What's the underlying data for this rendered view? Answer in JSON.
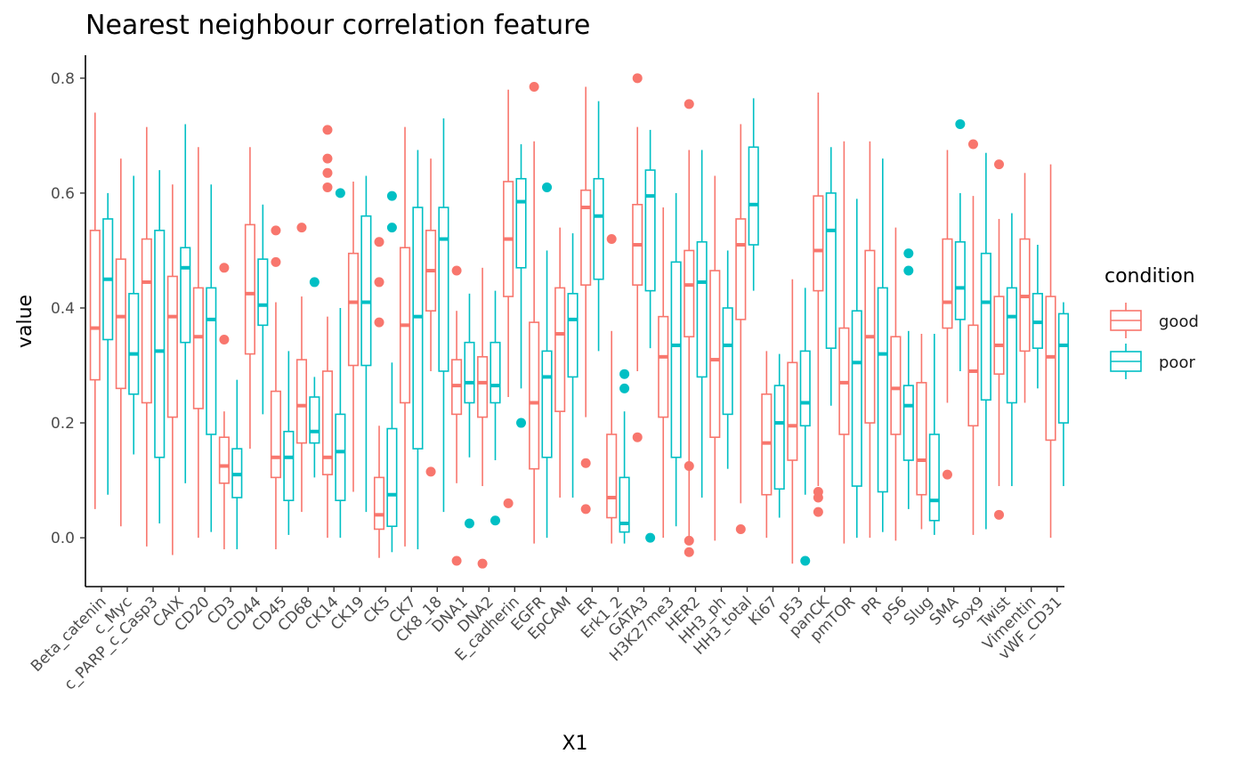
{
  "chart_data": {
    "type": "boxplot",
    "title": "Nearest neighbour correlation feature",
    "xlabel": "X1",
    "ylabel": "value",
    "ylim": [
      -0.085,
      0.84
    ],
    "yticks": [
      0.0,
      0.2,
      0.4,
      0.6,
      0.8
    ],
    "ytick_labels": [
      "0.0",
      "0.2",
      "0.4",
      "0.6",
      "0.8"
    ],
    "grid": false,
    "legend": {
      "title": "condition",
      "position": "right"
    },
    "categories": [
      "Beta_catenin",
      "c_Myc",
      "c_PARP_c_Casp3",
      "CAIX",
      "CD20",
      "CD3",
      "CD44",
      "CD45",
      "CD68",
      "CK14",
      "CK19",
      "CK5",
      "CK7",
      "CK8_18",
      "DNA1",
      "DNA2",
      "E_cadherin",
      "EGFR",
      "EpCAM",
      "ER",
      "Erk1_2",
      "GATA3",
      "H3K27me3",
      "HER2",
      "HH3_ph",
      "HH3_total",
      "Ki67",
      "p53",
      "panCK",
      "pmTOR",
      "PR",
      "pS6",
      "Slug",
      "SMA",
      "Sox9",
      "Twist",
      "Vimentin",
      "vWF_CD31"
    ],
    "series": [
      {
        "name": "good",
        "color": "#F8766D",
        "boxes": [
          {
            "whisker_low": 0.05,
            "q1": 0.275,
            "median": 0.365,
            "q3": 0.535,
            "whisker_high": 0.74,
            "outliers": []
          },
          {
            "whisker_low": 0.02,
            "q1": 0.26,
            "median": 0.385,
            "q3": 0.485,
            "whisker_high": 0.66,
            "outliers": []
          },
          {
            "whisker_low": -0.015,
            "q1": 0.235,
            "median": 0.445,
            "q3": 0.52,
            "whisker_high": 0.715,
            "outliers": []
          },
          {
            "whisker_low": -0.03,
            "q1": 0.21,
            "median": 0.385,
            "q3": 0.455,
            "whisker_high": 0.615,
            "outliers": []
          },
          {
            "whisker_low": 0.0,
            "q1": 0.225,
            "median": 0.35,
            "q3": 0.435,
            "whisker_high": 0.68,
            "outliers": []
          },
          {
            "whisker_low": -0.02,
            "q1": 0.095,
            "median": 0.125,
            "q3": 0.175,
            "whisker_high": 0.22,
            "outliers": [
              0.47,
              0.345
            ]
          },
          {
            "whisker_low": 0.155,
            "q1": 0.32,
            "median": 0.425,
            "q3": 0.545,
            "whisker_high": 0.68,
            "outliers": []
          },
          {
            "whisker_low": -0.02,
            "q1": 0.105,
            "median": 0.14,
            "q3": 0.255,
            "whisker_high": 0.41,
            "outliers": [
              0.535,
              0.48
            ]
          },
          {
            "whisker_low": 0.045,
            "q1": 0.165,
            "median": 0.23,
            "q3": 0.31,
            "whisker_high": 0.42,
            "outliers": [
              0.54
            ]
          },
          {
            "whisker_low": 0.0,
            "q1": 0.11,
            "median": 0.14,
            "q3": 0.29,
            "whisker_high": 0.385,
            "outliers": [
              0.71,
              0.66,
              0.635,
              0.61
            ]
          },
          {
            "whisker_low": 0.08,
            "q1": 0.3,
            "median": 0.41,
            "q3": 0.495,
            "whisker_high": 0.62,
            "outliers": []
          },
          {
            "whisker_low": -0.035,
            "q1": 0.015,
            "median": 0.04,
            "q3": 0.105,
            "whisker_high": 0.195,
            "outliers": [
              0.515,
              0.445,
              0.375
            ]
          },
          {
            "whisker_low": -0.015,
            "q1": 0.235,
            "median": 0.37,
            "q3": 0.505,
            "whisker_high": 0.715,
            "outliers": []
          },
          {
            "whisker_low": 0.29,
            "q1": 0.395,
            "median": 0.465,
            "q3": 0.535,
            "whisker_high": 0.66,
            "outliers": [
              0.115
            ]
          },
          {
            "whisker_low": 0.095,
            "q1": 0.215,
            "median": 0.265,
            "q3": 0.31,
            "whisker_high": 0.395,
            "outliers": [
              0.465,
              -0.04
            ]
          },
          {
            "whisker_low": 0.09,
            "q1": 0.21,
            "median": 0.27,
            "q3": 0.315,
            "whisker_high": 0.47,
            "outliers": [
              -0.045
            ]
          },
          {
            "whisker_low": 0.245,
            "q1": 0.42,
            "median": 0.52,
            "q3": 0.62,
            "whisker_high": 0.78,
            "outliers": [
              0.06
            ]
          },
          {
            "whisker_low": -0.01,
            "q1": 0.12,
            "median": 0.235,
            "q3": 0.375,
            "whisker_high": 0.69,
            "outliers": [
              0.785
            ]
          },
          {
            "whisker_low": 0.07,
            "q1": 0.22,
            "median": 0.355,
            "q3": 0.435,
            "whisker_high": 0.54,
            "outliers": []
          },
          {
            "whisker_low": 0.21,
            "q1": 0.44,
            "median": 0.575,
            "q3": 0.605,
            "whisker_high": 0.785,
            "outliers": [
              0.13,
              0.05
            ]
          },
          {
            "whisker_low": -0.01,
            "q1": 0.035,
            "median": 0.07,
            "q3": 0.18,
            "whisker_high": 0.36,
            "outliers": [
              0.52
            ]
          },
          {
            "whisker_low": 0.29,
            "q1": 0.44,
            "median": 0.51,
            "q3": 0.58,
            "whisker_high": 0.715,
            "outliers": [
              0.8,
              0.175
            ]
          },
          {
            "whisker_low": 0.0,
            "q1": 0.21,
            "median": 0.315,
            "q3": 0.385,
            "whisker_high": 0.575,
            "outliers": []
          },
          {
            "whisker_low": 0.0,
            "q1": 0.35,
            "median": 0.44,
            "q3": 0.5,
            "whisker_high": 0.675,
            "outliers": [
              0.755,
              0.125,
              -0.005,
              -0.025
            ]
          },
          {
            "whisker_low": -0.005,
            "q1": 0.175,
            "median": 0.31,
            "q3": 0.465,
            "whisker_high": 0.63,
            "outliers": []
          },
          {
            "whisker_low": 0.06,
            "q1": 0.38,
            "median": 0.51,
            "q3": 0.555,
            "whisker_high": 0.72,
            "outliers": [
              0.015
            ]
          },
          {
            "whisker_low": 0.0,
            "q1": 0.075,
            "median": 0.165,
            "q3": 0.25,
            "whisker_high": 0.325,
            "outliers": []
          },
          {
            "whisker_low": -0.045,
            "q1": 0.135,
            "median": 0.195,
            "q3": 0.305,
            "whisker_high": 0.45,
            "outliers": []
          },
          {
            "whisker_low": 0.09,
            "q1": 0.43,
            "median": 0.5,
            "q3": 0.595,
            "whisker_high": 0.775,
            "outliers": [
              0.08,
              0.07,
              0.045
            ]
          },
          {
            "whisker_low": -0.01,
            "q1": 0.18,
            "median": 0.27,
            "q3": 0.365,
            "whisker_high": 0.69,
            "outliers": []
          },
          {
            "whisker_low": 0.0,
            "q1": 0.2,
            "median": 0.35,
            "q3": 0.5,
            "whisker_high": 0.69,
            "outliers": []
          },
          {
            "whisker_low": -0.005,
            "q1": 0.18,
            "median": 0.26,
            "q3": 0.35,
            "whisker_high": 0.54,
            "outliers": []
          },
          {
            "whisker_low": 0.015,
            "q1": 0.075,
            "median": 0.135,
            "q3": 0.27,
            "whisker_high": 0.355,
            "outliers": []
          },
          {
            "whisker_low": 0.235,
            "q1": 0.365,
            "median": 0.41,
            "q3": 0.52,
            "whisker_high": 0.675,
            "outliers": [
              0.11
            ]
          },
          {
            "whisker_low": 0.005,
            "q1": 0.195,
            "median": 0.29,
            "q3": 0.37,
            "whisker_high": 0.595,
            "outliers": [
              0.685
            ]
          },
          {
            "whisker_low": 0.09,
            "q1": 0.285,
            "median": 0.335,
            "q3": 0.42,
            "whisker_high": 0.555,
            "outliers": [
              0.65,
              0.04
            ]
          },
          {
            "whisker_low": 0.235,
            "q1": 0.325,
            "median": 0.42,
            "q3": 0.52,
            "whisker_high": 0.635,
            "outliers": []
          },
          {
            "whisker_low": 0.0,
            "q1": 0.17,
            "median": 0.315,
            "q3": 0.42,
            "whisker_high": 0.65,
            "outliers": []
          }
        ]
      },
      {
        "name": "poor",
        "color": "#00BFC4",
        "boxes": [
          {
            "whisker_low": 0.075,
            "q1": 0.345,
            "median": 0.45,
            "q3": 0.555,
            "whisker_high": 0.6,
            "outliers": []
          },
          {
            "whisker_low": 0.145,
            "q1": 0.25,
            "median": 0.32,
            "q3": 0.425,
            "whisker_high": 0.63,
            "outliers": []
          },
          {
            "whisker_low": 0.025,
            "q1": 0.14,
            "median": 0.325,
            "q3": 0.535,
            "whisker_high": 0.64,
            "outliers": []
          },
          {
            "whisker_low": 0.095,
            "q1": 0.34,
            "median": 0.47,
            "q3": 0.505,
            "whisker_high": 0.72,
            "outliers": []
          },
          {
            "whisker_low": 0.01,
            "q1": 0.18,
            "median": 0.38,
            "q3": 0.435,
            "whisker_high": 0.615,
            "outliers": []
          },
          {
            "whisker_low": -0.02,
            "q1": 0.07,
            "median": 0.11,
            "q3": 0.155,
            "whisker_high": 0.275,
            "outliers": []
          },
          {
            "whisker_low": 0.215,
            "q1": 0.37,
            "median": 0.405,
            "q3": 0.485,
            "whisker_high": 0.58,
            "outliers": []
          },
          {
            "whisker_low": 0.005,
            "q1": 0.065,
            "median": 0.14,
            "q3": 0.185,
            "whisker_high": 0.325,
            "outliers": []
          },
          {
            "whisker_low": 0.105,
            "q1": 0.165,
            "median": 0.185,
            "q3": 0.245,
            "whisker_high": 0.28,
            "outliers": [
              0.445
            ]
          },
          {
            "whisker_low": 0.0,
            "q1": 0.065,
            "median": 0.15,
            "q3": 0.215,
            "whisker_high": 0.4,
            "outliers": [
              0.6
            ]
          },
          {
            "whisker_low": 0.045,
            "q1": 0.3,
            "median": 0.41,
            "q3": 0.56,
            "whisker_high": 0.63,
            "outliers": []
          },
          {
            "whisker_low": -0.025,
            "q1": 0.02,
            "median": 0.075,
            "q3": 0.19,
            "whisker_high": 0.305,
            "outliers": [
              0.595,
              0.54
            ]
          },
          {
            "whisker_low": -0.02,
            "q1": 0.155,
            "median": 0.385,
            "q3": 0.575,
            "whisker_high": 0.675,
            "outliers": []
          },
          {
            "whisker_low": 0.045,
            "q1": 0.29,
            "median": 0.52,
            "q3": 0.575,
            "whisker_high": 0.73,
            "outliers": []
          },
          {
            "whisker_low": 0.14,
            "q1": 0.235,
            "median": 0.27,
            "q3": 0.34,
            "whisker_high": 0.425,
            "outliers": [
              0.025
            ]
          },
          {
            "whisker_low": 0.135,
            "q1": 0.235,
            "median": 0.265,
            "q3": 0.34,
            "whisker_high": 0.43,
            "outliers": [
              0.03
            ]
          },
          {
            "whisker_low": 0.26,
            "q1": 0.47,
            "median": 0.585,
            "q3": 0.625,
            "whisker_high": 0.685,
            "outliers": [
              0.2
            ]
          },
          {
            "whisker_low": 0.0,
            "q1": 0.14,
            "median": 0.28,
            "q3": 0.325,
            "whisker_high": 0.5,
            "outliers": [
              0.61
            ]
          },
          {
            "whisker_low": 0.07,
            "q1": 0.28,
            "median": 0.38,
            "q3": 0.425,
            "whisker_high": 0.53,
            "outliers": []
          },
          {
            "whisker_low": 0.325,
            "q1": 0.45,
            "median": 0.56,
            "q3": 0.625,
            "whisker_high": 0.76,
            "outliers": []
          },
          {
            "whisker_low": -0.01,
            "q1": 0.01,
            "median": 0.025,
            "q3": 0.105,
            "whisker_high": 0.22,
            "outliers": [
              0.285,
              0.26
            ]
          },
          {
            "whisker_low": 0.33,
            "q1": 0.43,
            "median": 0.595,
            "q3": 0.64,
            "whisker_high": 0.71,
            "outliers": [
              0.0
            ]
          },
          {
            "whisker_low": 0.02,
            "q1": 0.14,
            "median": 0.335,
            "q3": 0.48,
            "whisker_high": 0.6,
            "outliers": []
          },
          {
            "whisker_low": 0.07,
            "q1": 0.28,
            "median": 0.445,
            "q3": 0.515,
            "whisker_high": 0.675,
            "outliers": []
          },
          {
            "whisker_low": 0.12,
            "q1": 0.215,
            "median": 0.335,
            "q3": 0.4,
            "whisker_high": 0.5,
            "outliers": []
          },
          {
            "whisker_low": 0.43,
            "q1": 0.51,
            "median": 0.58,
            "q3": 0.68,
            "whisker_high": 0.765,
            "outliers": []
          },
          {
            "whisker_low": 0.035,
            "q1": 0.085,
            "median": 0.2,
            "q3": 0.265,
            "whisker_high": 0.32,
            "outliers": []
          },
          {
            "whisker_low": 0.075,
            "q1": 0.195,
            "median": 0.235,
            "q3": 0.325,
            "whisker_high": 0.435,
            "outliers": [
              -0.04
            ]
          },
          {
            "whisker_low": 0.23,
            "q1": 0.33,
            "median": 0.535,
            "q3": 0.6,
            "whisker_high": 0.68,
            "outliers": []
          },
          {
            "whisker_low": 0.0,
            "q1": 0.09,
            "median": 0.305,
            "q3": 0.395,
            "whisker_high": 0.59,
            "outliers": []
          },
          {
            "whisker_low": 0.01,
            "q1": 0.08,
            "median": 0.32,
            "q3": 0.435,
            "whisker_high": 0.66,
            "outliers": []
          },
          {
            "whisker_low": 0.05,
            "q1": 0.135,
            "median": 0.23,
            "q3": 0.265,
            "whisker_high": 0.36,
            "outliers": [
              0.495,
              0.465
            ]
          },
          {
            "whisker_low": 0.005,
            "q1": 0.03,
            "median": 0.065,
            "q3": 0.18,
            "whisker_high": 0.355,
            "outliers": []
          },
          {
            "whisker_low": 0.29,
            "q1": 0.38,
            "median": 0.435,
            "q3": 0.515,
            "whisker_high": 0.6,
            "outliers": [
              0.72
            ]
          },
          {
            "whisker_low": 0.015,
            "q1": 0.24,
            "median": 0.41,
            "q3": 0.495,
            "whisker_high": 0.67,
            "outliers": []
          },
          {
            "whisker_low": 0.09,
            "q1": 0.235,
            "median": 0.385,
            "q3": 0.435,
            "whisker_high": 0.565,
            "outliers": []
          },
          {
            "whisker_low": 0.26,
            "q1": 0.33,
            "median": 0.375,
            "q3": 0.425,
            "whisker_high": 0.51,
            "outliers": []
          },
          {
            "whisker_low": 0.09,
            "q1": 0.2,
            "median": 0.335,
            "q3": 0.39,
            "whisker_high": 0.41,
            "outliers": []
          }
        ]
      }
    ]
  }
}
